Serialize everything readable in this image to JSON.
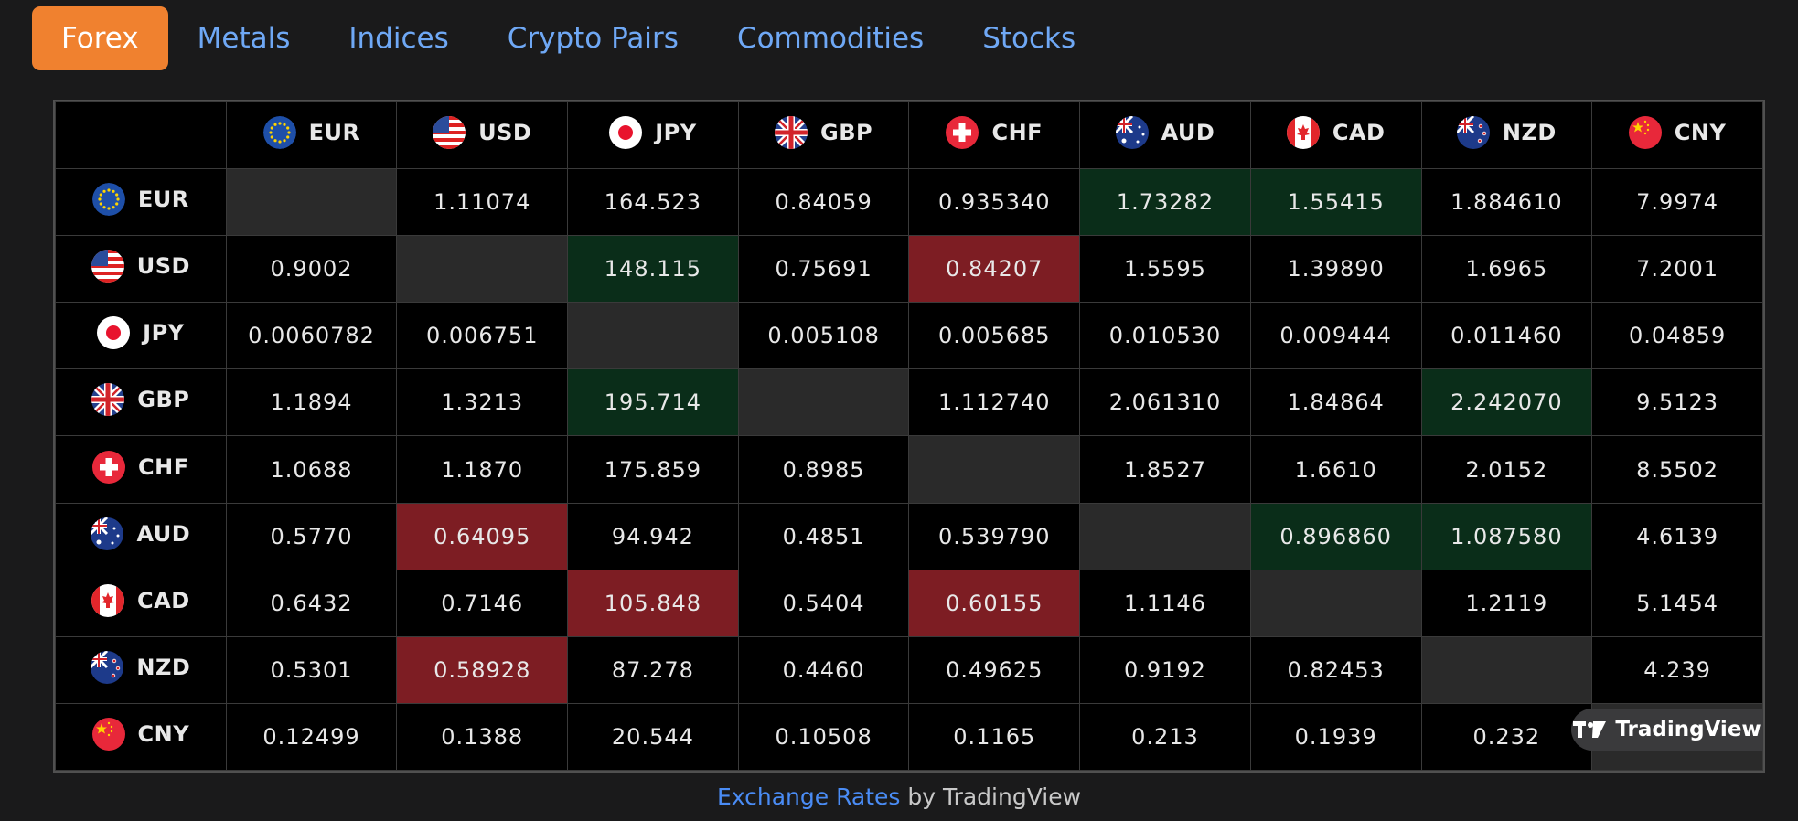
{
  "tabs": [
    {
      "label": "Forex",
      "active": true
    },
    {
      "label": "Metals"
    },
    {
      "label": "Indices"
    },
    {
      "label": "Crypto Pairs"
    },
    {
      "label": "Commodities"
    },
    {
      "label": "Stocks"
    }
  ],
  "currencies": [
    "EUR",
    "USD",
    "JPY",
    "GBP",
    "CHF",
    "AUD",
    "CAD",
    "NZD",
    "CNY"
  ],
  "matrix": [
    [
      "",
      "1.11074",
      "164.523",
      "0.84059",
      "0.935340",
      "1.73282",
      "1.55415",
      "1.884610",
      "7.9974"
    ],
    [
      "0.9002",
      "",
      "148.115",
      "0.75691",
      "0.84207",
      "1.5595",
      "1.39890",
      "1.6965",
      "7.2001"
    ],
    [
      "0.0060782",
      "0.006751",
      "",
      "0.005108",
      "0.005685",
      "0.010530",
      "0.009444",
      "0.011460",
      "0.04859"
    ],
    [
      "1.1894",
      "1.3213",
      "195.714",
      "",
      "1.112740",
      "2.061310",
      "1.84864",
      "2.242070",
      "9.5123"
    ],
    [
      "1.0688",
      "1.1870",
      "175.859",
      "0.8985",
      "",
      "1.8527",
      "1.6610",
      "2.0152",
      "8.5502"
    ],
    [
      "0.5770",
      "0.64095",
      "94.942",
      "0.4851",
      "0.539790",
      "",
      "0.896860",
      "1.087580",
      "4.6139"
    ],
    [
      "0.6432",
      "0.7146",
      "105.848",
      "0.5404",
      "0.60155",
      "1.1146",
      "",
      "1.2119",
      "5.1454"
    ],
    [
      "0.5301",
      "0.58928",
      "87.278",
      "0.4460",
      "0.49625",
      "0.9192",
      "0.82453",
      "",
      "4.239"
    ],
    [
      "0.12499",
      "0.1388",
      "20.544",
      "0.10508",
      "0.1165",
      "0.213",
      "0.1939",
      "0.232",
      ""
    ]
  ],
  "highlights_up": [
    [
      0,
      5
    ],
    [
      0,
      6
    ],
    [
      1,
      2
    ],
    [
      3,
      2
    ],
    [
      3,
      7
    ],
    [
      5,
      6
    ],
    [
      5,
      7
    ]
  ],
  "highlights_down": [
    [
      1,
      4
    ],
    [
      5,
      1
    ],
    [
      6,
      2
    ],
    [
      6,
      4
    ],
    [
      7,
      1
    ]
  ],
  "colors": {
    "up": "#0a2d19",
    "down": "#7d1d23",
    "diagonal": "#2a2a2a",
    "accent": "#f0812f",
    "link": "#4a8cf5"
  },
  "badge": {
    "label": "TradingView"
  },
  "footer": {
    "link_text": "Exchange Rates",
    "suffix": " by TradingView"
  }
}
